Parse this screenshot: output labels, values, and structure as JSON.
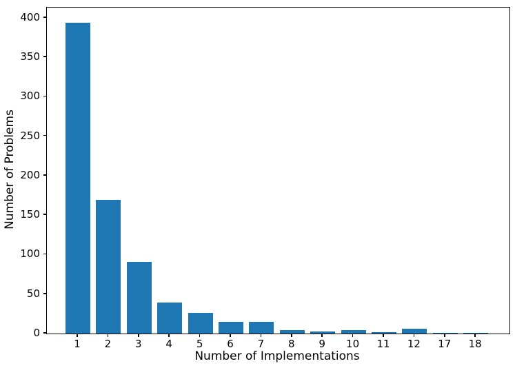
{
  "chart_data": {
    "type": "bar",
    "categories": [
      "1",
      "2",
      "3",
      "4",
      "5",
      "6",
      "7",
      "8",
      "9",
      "10",
      "11",
      "12",
      "17",
      "18"
    ],
    "values": [
      394,
      169,
      91,
      39,
      26,
      15,
      15,
      4,
      3,
      4,
      2,
      6,
      1,
      1
    ],
    "title": "",
    "xlabel": "Number of Implementations",
    "ylabel": "Number of Problems",
    "ylim": [
      0,
      413
    ],
    "yticks": [
      0,
      50,
      100,
      150,
      200,
      250,
      300,
      350,
      400
    ],
    "bar_color": "#1f77b4",
    "axis_color": "#000000",
    "grid": false,
    "legend_position": "none"
  }
}
